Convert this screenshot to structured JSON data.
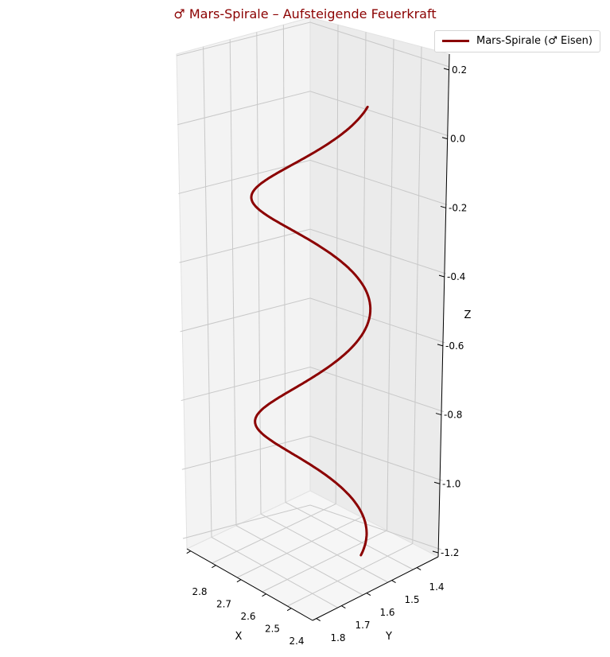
{
  "chart_data": {
    "type": "line3d",
    "title": "♂ Mars-Spirale – Aufsteigende Feuerkraft",
    "xlabel": "X",
    "ylabel": "Y",
    "zlabel": "Z",
    "x_ticks": [
      "2.8",
      "2.7",
      "2.6",
      "2.5",
      "2.4"
    ],
    "y_ticks": [
      "1.8",
      "1.7",
      "1.6",
      "1.5",
      "1.4"
    ],
    "z_ticks": [
      "0.2",
      "0.0",
      "-0.2",
      "-0.4",
      "-0.6",
      "-0.8",
      "-1.0",
      "-1.2"
    ],
    "grid": true,
    "legend_position": "top-right",
    "series": [
      {
        "name": "Mars-Spirale (♂ Eisen)",
        "color": "#8b0000",
        "center": [
          2.6,
          1.6
        ],
        "radius": 0.2,
        "z_range": [
          -1.15,
          0.15
        ],
        "turns": 2
      }
    ]
  }
}
